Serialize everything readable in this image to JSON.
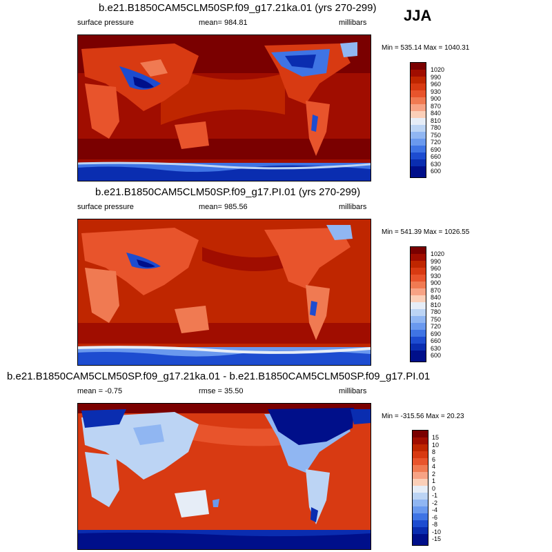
{
  "season": "JJA",
  "panels": [
    {
      "title": "b.e21.B1850CAM5CLM50SP.f09_g17.21ka.01 (yrs 270-299)",
      "left_label": "surface pressure",
      "center_label": "mean= 984.81",
      "right_label": "millibars",
      "minmax": "Min = 535.14 Max = 1040.31",
      "colorbar_labels": [
        "1020",
        "990",
        "960",
        "930",
        "900",
        "870",
        "840",
        "810",
        "780",
        "750",
        "720",
        "690",
        "660",
        "630",
        "600"
      ]
    },
    {
      "title": "b.e21.B1850CAM5CLM50SP.f09_g17.PI.01 (yrs 270-299)",
      "left_label": "surface pressure",
      "center_label": "mean= 985.56",
      "right_label": "millibars",
      "minmax": "Min = 541.39 Max = 1026.55",
      "colorbar_labels": [
        "1020",
        "990",
        "960",
        "930",
        "900",
        "870",
        "840",
        "810",
        "780",
        "750",
        "720",
        "690",
        "660",
        "630",
        "600"
      ]
    },
    {
      "title": "b.e21.B1850CAM5CLM50SP.f09_g17.21ka.01 - b.e21.B1850CAM5CLM50SP.f09_g17.PI.01",
      "left_label": "mean =  -0.75",
      "center_label": "rmse =  35.50",
      "right_label": "millibars",
      "minmax": "Min = -315.56 Max =  20.23",
      "colorbar_labels": [
        "15",
        "10",
        "8",
        "6",
        "4",
        "2",
        "1",
        "0",
        "-1",
        "-2",
        "-4",
        "-6",
        "-8",
        "-10",
        "-15"
      ]
    }
  ],
  "colors": {
    "pressure_scale": [
      "#7a0000",
      "#a00d00",
      "#bf2600",
      "#d83a12",
      "#e8542c",
      "#f07a52",
      "#f7a385",
      "#fbcfb8",
      "#e6edf7",
      "#bcd4f4",
      "#90b6f2",
      "#6a99ee",
      "#3f74e4",
      "#1d4cd0",
      "#0a2db0",
      "#000f8a"
    ],
    "diff_scale": [
      "#7a0000",
      "#a00d00",
      "#bf2600",
      "#d83a12",
      "#e8542c",
      "#f07a52",
      "#f7a385",
      "#fbcfb8",
      "#e6edf7",
      "#bcd4f4",
      "#90b6f2",
      "#6a99ee",
      "#3f74e4",
      "#1d4cd0",
      "#0a2db0",
      "#000f8a"
    ]
  }
}
